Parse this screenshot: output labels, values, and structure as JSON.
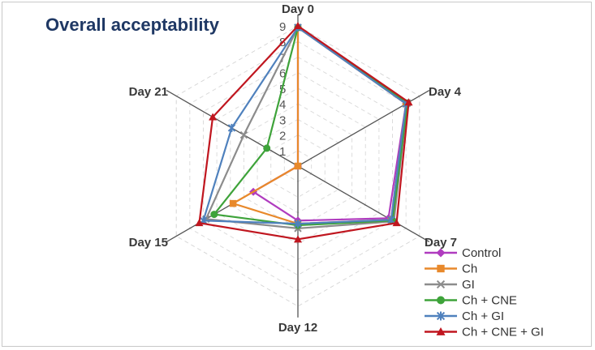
{
  "title": "Overall acceptability",
  "chart_data": {
    "type": "radar",
    "title": "Overall acceptability",
    "axes": [
      "Day 0",
      "Day 4",
      "Day 7",
      "Day 12",
      "Day 15",
      "Day 21"
    ],
    "scale": {
      "min": 0,
      "max": 9,
      "ticks": [
        "1",
        "2",
        "3",
        "4",
        "5",
        "6",
        "7",
        "8",
        "9"
      ]
    },
    "grid": true,
    "legend_position": "bottom-right",
    "series": [
      {
        "name": "Control",
        "color": "#b03cbf",
        "marker": "diamond",
        "values": [
          8.9,
          8.0,
          6.7,
          3.5,
          3.3,
          0.0
        ]
      },
      {
        "name": "Ch",
        "color": "#e8892b",
        "marker": "square",
        "values": [
          8.9,
          8.0,
          6.9,
          3.7,
          4.8,
          0.0
        ]
      },
      {
        "name": "GI",
        "color": "#8c8c8c",
        "marker": "x",
        "values": [
          8.9,
          8.1,
          7.1,
          4.0,
          6.8,
          4.0
        ]
      },
      {
        "name": "Ch + CNE",
        "color": "#3ea33a",
        "marker": "circle",
        "values": [
          8.9,
          8.1,
          7.0,
          3.8,
          6.2,
          2.3
        ]
      },
      {
        "name": "Ch + GI",
        "color": "#4f81bd",
        "marker": "asterisk",
        "values": [
          8.9,
          8.0,
          6.9,
          3.7,
          7.0,
          4.9
        ]
      },
      {
        "name": "Ch + CNE + GI",
        "color": "#c0161f",
        "marker": "triangle",
        "values": [
          9.0,
          8.2,
          7.3,
          4.7,
          7.3,
          6.3
        ]
      }
    ]
  }
}
